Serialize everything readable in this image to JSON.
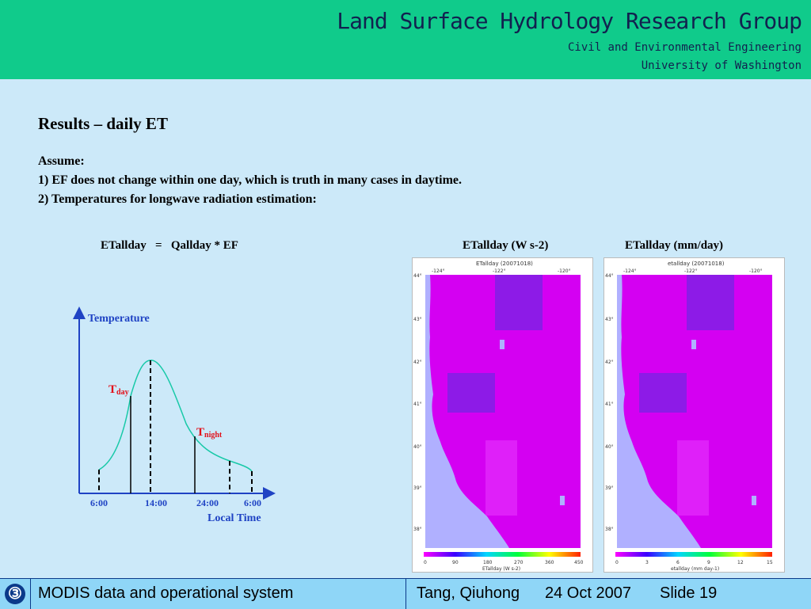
{
  "header": {
    "title": "Land Surface Hydrology Research Group",
    "line1": "Civil and Environmental Engineering",
    "line2": "University of Washington"
  },
  "slide": {
    "title": "Results – daily ET",
    "assume_label": "Assume:",
    "point1": "1) EF does not change within one day, which is truth in many cases in daytime.",
    "point2": "2) Temperatures for longwave radiation estimation:",
    "formula": "ETallday   =   Qallday * EF"
  },
  "diagram": {
    "y_axis_label": "Temperature",
    "x_axis_label": "Local Time",
    "x_ticks": [
      "6:00",
      "14:00",
      "24:00",
      "6:00"
    ],
    "t_day_main": "T",
    "t_day_sub": "day",
    "t_night_main": "T",
    "t_night_sub": "night"
  },
  "maps": [
    {
      "caption": "ETallday (W s-2)",
      "plot_title": "ETallday (20071018)",
      "lon_ticks": [
        "-124°",
        "-122°",
        "-120°"
      ],
      "lat_ticks": [
        "44°",
        "43°",
        "42°",
        "41°",
        "40°",
        "39°",
        "38°"
      ],
      "colorbar_ticks": [
        "0",
        "90",
        "180",
        "270",
        "360",
        "450"
      ],
      "colorbar_label": "ETallday (W s-2)"
    },
    {
      "caption": "ETallday (mm/day)",
      "plot_title": "etallday (20071018)",
      "lon_ticks": [
        "-124°",
        "-122°",
        "-120°"
      ],
      "lat_ticks": [
        "44°",
        "43°",
        "42°",
        "41°",
        "40°",
        "39°",
        "38°"
      ],
      "colorbar_ticks": [
        "0",
        "3",
        "6",
        "9",
        "12",
        "15"
      ],
      "colorbar_label": "etallday (mm day-1)"
    }
  ],
  "footer": {
    "slide_badge": "③",
    "left_text": "MODIS data and operational system",
    "author": "Tang, Qiuhong",
    "date": "24 Oct 2007",
    "slide_number": "Slide 19"
  },
  "colors": {
    "header_bg": "#10cb8b",
    "slide_bg": "#cce9f9",
    "footer_bg": "#8fd6f7",
    "accent_blue": "#1f43c4",
    "accent_red": "#e2101a",
    "curve_teal": "#18c9a8",
    "map_magenta": "#d400f2",
    "map_ocean": "#b0b0ff"
  }
}
